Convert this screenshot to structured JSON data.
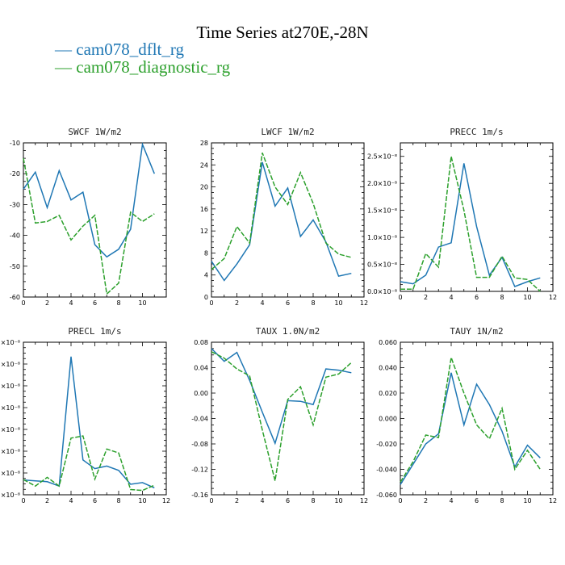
{
  "figure_title": "Time Series at270E,-28N",
  "legend": [
    {
      "label": "cam078_dflt_rg",
      "color": "#1f77b4"
    },
    {
      "label": "cam078_diagnostic_rg",
      "color": "#2ca02c"
    }
  ],
  "chart_data": [
    {
      "type": "line",
      "title": "SWCF   1W/m2",
      "xlim": [
        0,
        12
      ],
      "ylim": [
        -60,
        -10
      ],
      "xticks": [
        0,
        2,
        4,
        6,
        8,
        10
      ],
      "xtick_labels": [
        "0",
        "2",
        "4",
        "6",
        "8",
        "10"
      ],
      "yticks": [
        -60,
        -50,
        -40,
        -30,
        -20,
        -10
      ],
      "ytick_labels": [
        "-60",
        "-50",
        "-40",
        "-30",
        "-20",
        "-10"
      ],
      "x": [
        0,
        1,
        2,
        3,
        4,
        5,
        6,
        7,
        8,
        9,
        10,
        11
      ],
      "series": [
        {
          "name": "cam078_dflt_rg",
          "color": "#1f77b4",
          "dash": "",
          "values": [
            -25,
            -19.5,
            -31,
            -19,
            -28.5,
            -26,
            -43,
            -47,
            -44.5,
            -38,
            -10.5,
            -20
          ]
        },
        {
          "name": "cam078_diagnostic_rg",
          "color": "#2ca02c",
          "dash": "6,2",
          "values": [
            -15,
            -36,
            -35.5,
            -33.5,
            -41.5,
            -37,
            -33.5,
            -59,
            -55.5,
            -32.5,
            -35.5,
            -33
          ]
        }
      ]
    },
    {
      "type": "line",
      "title": "LWCF   1W/m2",
      "xlim": [
        0,
        12
      ],
      "ylim": [
        0,
        28
      ],
      "xticks": [
        0,
        2,
        4,
        6,
        8,
        10,
        12
      ],
      "xtick_labels": [
        "0",
        "2",
        "4",
        "6",
        "8",
        "10",
        "12"
      ],
      "yticks": [
        0,
        4,
        8,
        12,
        16,
        20,
        24,
        28
      ],
      "ytick_labels": [
        "0",
        "4",
        "8",
        "12",
        "16",
        "20",
        "24",
        "28"
      ],
      "x": [
        0,
        1,
        2,
        3,
        4,
        5,
        6,
        7,
        8,
        9,
        10,
        11
      ],
      "series": [
        {
          "name": "cam078_dflt_rg",
          "color": "#1f77b4",
          "dash": "",
          "values": [
            6.5,
            3,
            6,
            9.5,
            24.5,
            16.5,
            19.8,
            11,
            14,
            10,
            3.8,
            4.3
          ]
        },
        {
          "name": "cam078_diagnostic_rg",
          "color": "#2ca02c",
          "dash": "6,2",
          "values": [
            5,
            7,
            12.8,
            9.8,
            26.2,
            20,
            16.8,
            22.6,
            17,
            9.8,
            7.8,
            7.2
          ]
        }
      ]
    },
    {
      "type": "line",
      "title": "PRECC   1m/s",
      "xlim": [
        0,
        12
      ],
      "ylim": [
        0,
        2.75e-08
      ],
      "xticks": [
        0,
        2,
        4,
        6,
        8,
        10,
        12
      ],
      "xtick_labels": [
        "0",
        "2",
        "4",
        "6",
        "8",
        "10",
        "12"
      ],
      "yticks": [
        0,
        5e-09,
        1e-08,
        1.5e-08,
        2e-08,
        2.5e-08
      ],
      "ytick_labels": [
        "0.0×10⁻⁸",
        "0.5×10⁻⁸",
        "1.0×10⁻⁸",
        "1.5×10⁻⁸",
        "2.0×10⁻⁸",
        "2.5×10⁻⁸"
      ],
      "x": [
        0,
        1,
        2,
        3,
        4,
        5,
        6,
        7,
        8,
        9,
        10,
        11
      ],
      "series": [
        {
          "name": "cam078_dflt_rg",
          "color": "#1f77b4",
          "dash": "",
          "values": [
            1.8e-09,
            1.4e-09,
            3e-09,
            8.2e-09,
            9e-09,
            2.37e-08,
            1.2e-08,
            3e-09,
            6.3e-09,
            9e-10,
            1.8e-09,
            2.5e-09
          ]
        },
        {
          "name": "cam078_diagnostic_rg",
          "color": "#2ca02c",
          "dash": "6,2",
          "values": [
            4e-10,
            4e-10,
            7e-09,
            4.5e-09,
            2.5e-08,
            1.5e-08,
            2.6e-09,
            2.6e-09,
            6.5e-09,
            2.5e-09,
            2.2e-09,
            0
          ]
        }
      ]
    },
    {
      "type": "line",
      "title": "PRECL   1m/s",
      "xlim": [
        0,
        12
      ],
      "ylim": [
        0,
        3.5e-08
      ],
      "xticks": [
        0,
        2,
        4,
        6,
        8,
        10,
        12
      ],
      "xtick_labels": [
        "0",
        "2",
        "4",
        "6",
        "8",
        "10",
        "12"
      ],
      "yticks": [
        0,
        5e-09,
        1e-08,
        1.5e-08,
        2e-08,
        2.5e-08,
        3e-08,
        3.5e-08
      ],
      "ytick_labels": [
        "×10⁻⁸",
        "×10⁻⁸",
        "×10⁻⁸",
        "×10⁻⁸",
        "×10⁻⁸",
        "×10⁻⁸",
        "×10⁻⁸",
        "5×10⁻⁸"
      ],
      "x": [
        0,
        1,
        2,
        3,
        4,
        5,
        6,
        7,
        8,
        9,
        10,
        11
      ],
      "series": [
        {
          "name": "cam078_dflt_rg",
          "color": "#1f77b4",
          "dash": "",
          "values": [
            3.4e-09,
            3.2e-09,
            3e-09,
            2e-09,
            3.17e-08,
            8e-09,
            6e-09,
            6.6e-09,
            5.6e-09,
            2.4e-09,
            2.8e-09,
            1.6e-09
          ]
        },
        {
          "name": "cam078_diagnostic_rg",
          "color": "#2ca02c",
          "dash": "6,2",
          "values": [
            3.5e-09,
            2e-09,
            4e-09,
            2e-09,
            1.3e-08,
            1.35e-08,
            3.6e-09,
            1.05e-08,
            9.6e-09,
            1.2e-09,
            1e-09,
            2.2e-09
          ]
        }
      ]
    },
    {
      "type": "line",
      "title": "TAUX   1.0N/m2",
      "xlim": [
        0,
        12
      ],
      "ylim": [
        -0.16,
        0.08
      ],
      "xticks": [
        0,
        2,
        4,
        6,
        8,
        10,
        12
      ],
      "xtick_labels": [
        "0",
        "2",
        "4",
        "6",
        "8",
        "10",
        "12"
      ],
      "yticks": [
        -0.16,
        -0.12,
        -0.08,
        -0.04,
        0,
        0.04,
        0.08
      ],
      "ytick_labels": [
        "-0.16",
        "-0.12",
        "-0.08",
        "-0.04",
        "0.00",
        "0.04",
        "0.08"
      ],
      "x": [
        0,
        1,
        2,
        3,
        4,
        5,
        6,
        7,
        8,
        9,
        10,
        11
      ],
      "series": [
        {
          "name": "cam078_dflt_rg",
          "color": "#1f77b4",
          "dash": "",
          "values": [
            0.07,
            0.05,
            0.064,
            0.02,
            -0.03,
            -0.079,
            -0.012,
            -0.013,
            -0.018,
            0.038,
            0.036,
            0.032
          ]
        },
        {
          "name": "cam078_diagnostic_rg",
          "color": "#2ca02c",
          "dash": "6,2",
          "values": [
            0.065,
            0.055,
            0.038,
            0.027,
            -0.058,
            -0.138,
            -0.01,
            0.01,
            -0.05,
            0.025,
            0.03,
            0.048
          ]
        }
      ]
    },
    {
      "type": "line",
      "title": "TAUY   1N/m2",
      "xlim": [
        0,
        12
      ],
      "ylim": [
        -0.06,
        0.06
      ],
      "xticks": [
        0,
        2,
        4,
        6,
        8,
        10,
        12
      ],
      "xtick_labels": [
        "0",
        "2",
        "4",
        "6",
        "8",
        "10",
        "12"
      ],
      "yticks": [
        -0.06,
        -0.04,
        -0.02,
        0,
        0.02,
        0.04,
        0.06
      ],
      "ytick_labels": [
        "-0.060",
        "-0.040",
        "-0.020",
        "0.000",
        "0.020",
        "0.040",
        "0.060"
      ],
      "x": [
        0,
        1,
        2,
        3,
        4,
        5,
        6,
        7,
        8,
        9,
        10,
        11
      ],
      "series": [
        {
          "name": "cam078_dflt_rg",
          "color": "#1f77b4",
          "dash": "",
          "values": [
            -0.052,
            -0.036,
            -0.02,
            -0.012,
            0.036,
            -0.005,
            0.027,
            0.011,
            -0.01,
            -0.038,
            -0.021,
            -0.031
          ]
        },
        {
          "name": "cam078_diagnostic_rg",
          "color": "#2ca02c",
          "dash": "6,2",
          "values": [
            -0.05,
            -0.034,
            -0.013,
            -0.015,
            0.048,
            0.02,
            -0.005,
            -0.016,
            0.008,
            -0.04,
            -0.025,
            -0.04
          ]
        }
      ]
    }
  ]
}
